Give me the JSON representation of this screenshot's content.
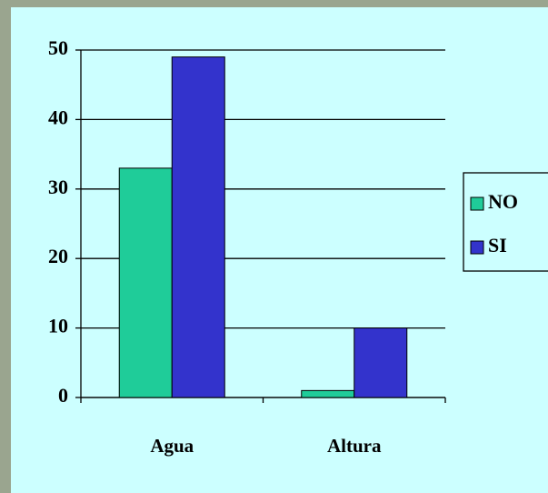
{
  "chart_data": {
    "type": "bar",
    "categories": [
      "Agua",
      "Altura"
    ],
    "series": [
      {
        "name": "NO",
        "color": "#1fcc99",
        "values": [
          33,
          1
        ]
      },
      {
        "name": "SI",
        "color": "#3333cc",
        "values": [
          49,
          10
        ]
      }
    ],
    "ylim": [
      0,
      50
    ],
    "yticks": [
      0,
      10,
      20,
      30,
      40,
      50
    ],
    "grid": true,
    "legend": "right"
  }
}
